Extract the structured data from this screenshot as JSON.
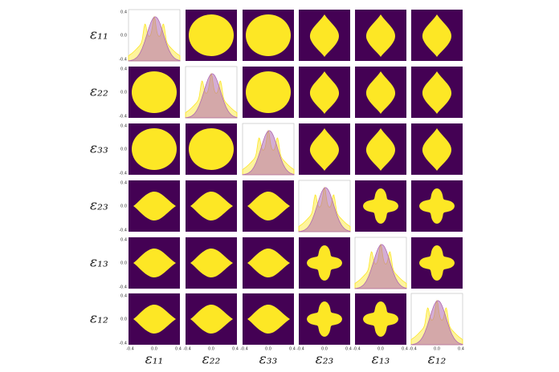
{
  "figure": {
    "row_labels": [
      "ε₁₁",
      "ε₂₂",
      "ε₃₃",
      "ε₂₃",
      "ε₁₃",
      "ε₁₂"
    ],
    "column_labels": [
      "ε₁₁",
      "ε₂₂",
      "ε₃₃",
      "ε₂₃",
      "ε₁₃",
      "ε₁₂"
    ],
    "tick_labels": [
      "-0.4",
      "0.0",
      "0.4"
    ]
  }
}
